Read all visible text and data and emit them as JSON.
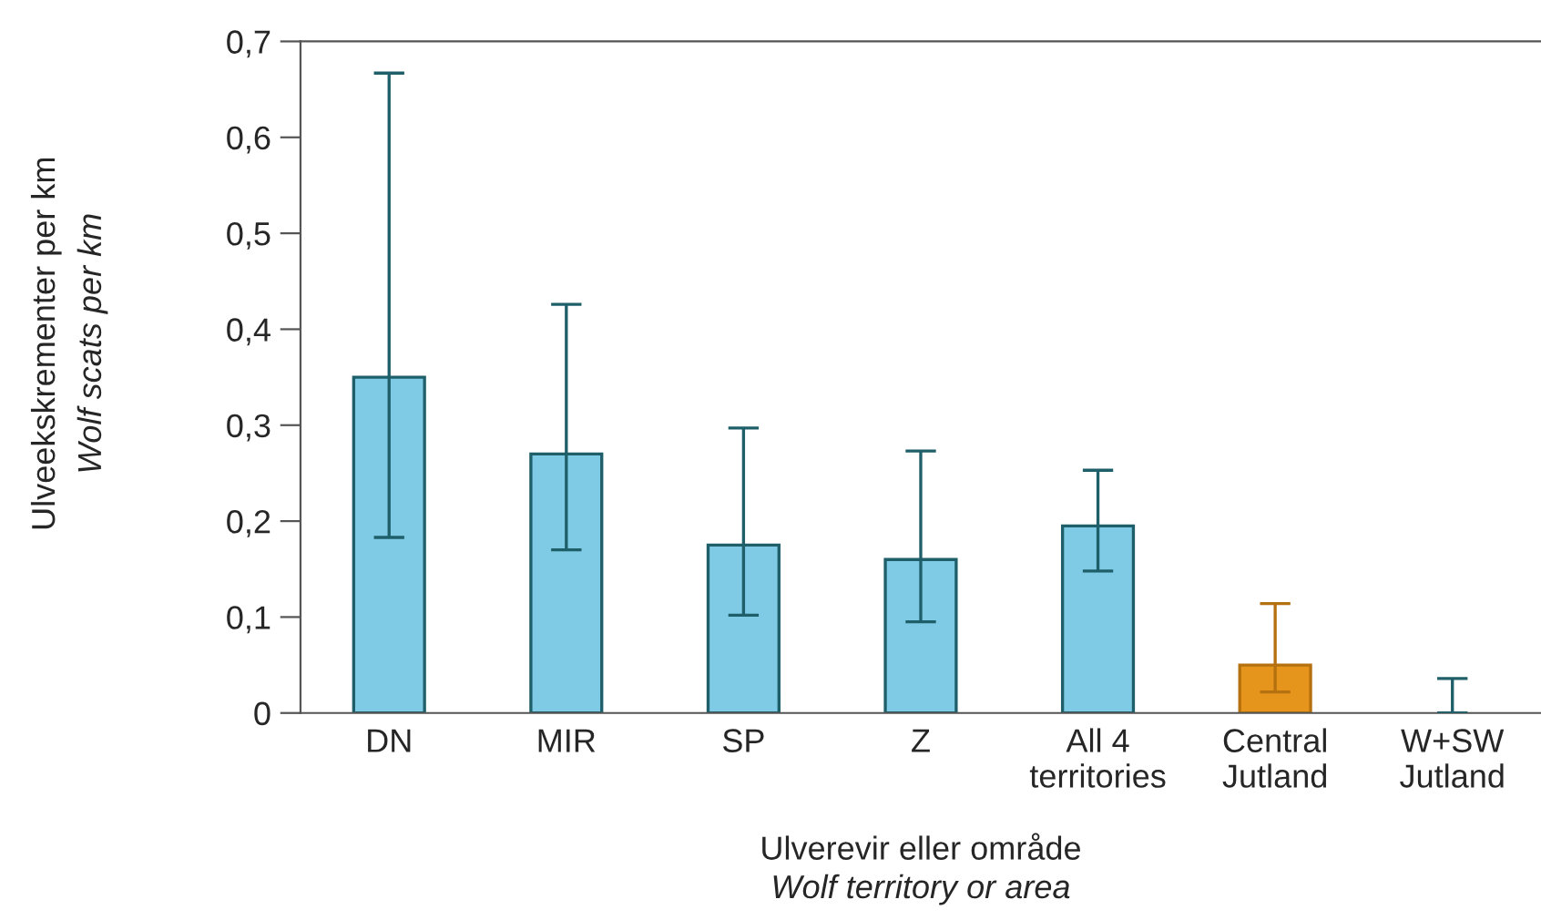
{
  "chart_data": {
    "type": "bar",
    "categories": [
      "DN",
      "MIR",
      "SP",
      "Z",
      "All 4\nterritories",
      "Central\nJutland",
      "W+SW\nJutland"
    ],
    "values": [
      0.35,
      0.27,
      0.175,
      0.16,
      0.195,
      0.05,
      0
    ],
    "colors": [
      "#7fcbe6",
      "#7fcbe6",
      "#7fcbe6",
      "#7fcbe6",
      "#7fcbe6",
      "#e5951c",
      "#7fcbe6"
    ],
    "errors": [
      [
        0.183,
        0.667
      ],
      [
        0.17,
        0.426
      ],
      [
        0.102,
        0.297
      ],
      [
        0.095,
        0.273
      ],
      [
        0.148,
        0.253
      ],
      [
        0.022,
        0.114
      ],
      [
        0,
        0.036
      ]
    ],
    "xlabel": "Ulverevir eller område\nWolf territory or area",
    "ylabel": "Ulveekskrementer per km\nWolf scats per km",
    "ylim": [
      0,
      0.7
    ],
    "yticks": [
      {
        "value": 0,
        "label": "0"
      },
      {
        "value": 0.1,
        "label": "0,1"
      },
      {
        "value": 0.2,
        "label": "0,2"
      },
      {
        "value": 0.3,
        "label": "0,3"
      },
      {
        "value": 0.4,
        "label": "0,4"
      },
      {
        "value": 0.5,
        "label": "0,5"
      },
      {
        "value": 0.6,
        "label": "0,6"
      },
      {
        "value": 0.7,
        "label": "0,7"
      }
    ],
    "grid": false
  }
}
